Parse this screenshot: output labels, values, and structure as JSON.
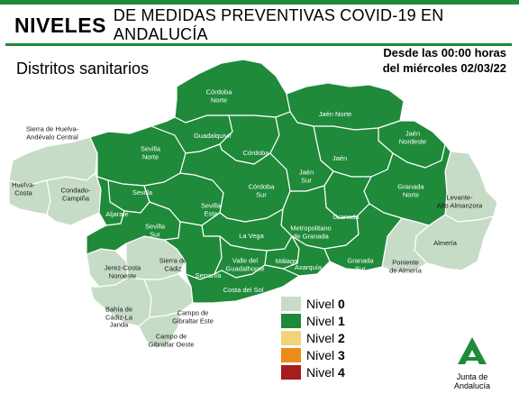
{
  "header": {
    "title_bold": "NIVELES",
    "title_rest": "DE MEDIDAS PREVENTIVAS COVID-19 EN ANDALUCÍA"
  },
  "subtitle": "Distritos sanitarios",
  "date": {
    "line1": "Desde las 00:00 horas",
    "line2": "del miércoles 02/03/22"
  },
  "colors": {
    "nivel0": "#c7dcc7",
    "nivel1": "#1e8a3a",
    "nivel2": "#f2d27a",
    "nivel3": "#ee8a1a",
    "nivel4": "#a51d1d"
  },
  "districts": [
    {
      "name": "Sierra de Huelva-\nAndévalo Central",
      "level": 0
    },
    {
      "name": "Huelva-\nCosta",
      "level": 0
    },
    {
      "name": "Condado-\nCampiña",
      "level": 0
    },
    {
      "name": "Sevilla\nNorte",
      "level": 1
    },
    {
      "name": "Sevilla",
      "level": 1
    },
    {
      "name": "Aljarafe",
      "level": 1
    },
    {
      "name": "Sevilla\nSur",
      "level": 1
    },
    {
      "name": "Sevilla\nEste",
      "level": 1
    },
    {
      "name": "Jerez-Costa\nNoroeste",
      "level": 0
    },
    {
      "name": "Sierra de\nCádiz",
      "level": 0
    },
    {
      "name": "Bahía de\nCádiz-La\nJanda",
      "level": 0
    },
    {
      "name": "Campo de\nGibraltar Este",
      "level": 0
    },
    {
      "name": "Campo de\nGibraltar Oeste",
      "level": 0
    },
    {
      "name": "Córdoba\nNorte",
      "level": 1
    },
    {
      "name": "Guadalquivir",
      "level": 1
    },
    {
      "name": "Córdoba",
      "level": 1
    },
    {
      "name": "Córdoba\nSur",
      "level": 1
    },
    {
      "name": "Jaén Norte",
      "level": 1
    },
    {
      "name": "Jaén\nNordeste",
      "level": 1
    },
    {
      "name": "Jaén",
      "level": 1
    },
    {
      "name": "Jaén\nSur",
      "level": 1
    },
    {
      "name": "Granada\nNorte",
      "level": 1
    },
    {
      "name": "Granada",
      "level": 1
    },
    {
      "name": "Metropolitano\nde Granada",
      "level": 1
    },
    {
      "name": "Granada\nSur",
      "level": 1
    },
    {
      "name": "La Vega",
      "level": 1
    },
    {
      "name": "Serranía",
      "level": 1
    },
    {
      "name": "Valle del\nGuadalhorce",
      "level": 1
    },
    {
      "name": "Málaga",
      "level": 1
    },
    {
      "name": "Axarquía",
      "level": 1
    },
    {
      "name": "Costa del Sol",
      "level": 1
    },
    {
      "name": "Levante-\nAlto Almanzora",
      "level": 0
    },
    {
      "name": "Almería",
      "level": 0
    },
    {
      "name": "Poniente\nde Almería",
      "level": 0
    }
  ],
  "legend": [
    {
      "prefix": "Nivel ",
      "number": "0",
      "color": "#c7dcc7"
    },
    {
      "prefix": "Nivel ",
      "number": "1",
      "color": "#1e8a3a"
    },
    {
      "prefix": "Nivel ",
      "number": "2",
      "color": "#f2d27a"
    },
    {
      "prefix": "Nivel ",
      "number": "3",
      "color": "#ee8a1a"
    },
    {
      "prefix": "Nivel ",
      "number": "4",
      "color": "#a51d1d"
    }
  ],
  "logo": {
    "text": "Junta de Andalucía",
    "icon": "junta-andalucia-logo-icon"
  }
}
